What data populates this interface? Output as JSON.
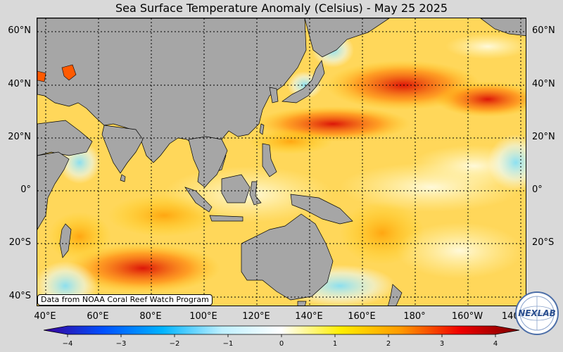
{
  "title": "Sea Surface Temperature Anomaly (Celsius) - May 25 2025",
  "source_note": "Data from NOAA Coral Reef Watch Program",
  "logo_text": "NEXLAB",
  "latitudes": [
    "60°N",
    "40°N",
    "20°N",
    "0°",
    "20°S",
    "40°S"
  ],
  "longitudes": [
    "40°E",
    "60°E",
    "80°E",
    "100°E",
    "120°E",
    "140°E",
    "160°E",
    "180°",
    "160°W",
    "140°W"
  ],
  "colorbar": {
    "min": -4,
    "max": 4,
    "ticks": [
      "−4",
      "−3",
      "−2",
      "−1",
      "0",
      "1",
      "2",
      "3",
      "4"
    ],
    "colors": [
      "#3a0098",
      "#0050ff",
      "#00b4ff",
      "#bff0ff",
      "#ffffff",
      "#ffee00",
      "#ff9a00",
      "#f00000",
      "#7a0000"
    ]
  },
  "palette": {
    "land": "#a6a6a6",
    "ocean_warm": "#ffd75a",
    "ocean_hot": "#f05a00",
    "ocean_cool": "#8ee4ff"
  }
}
